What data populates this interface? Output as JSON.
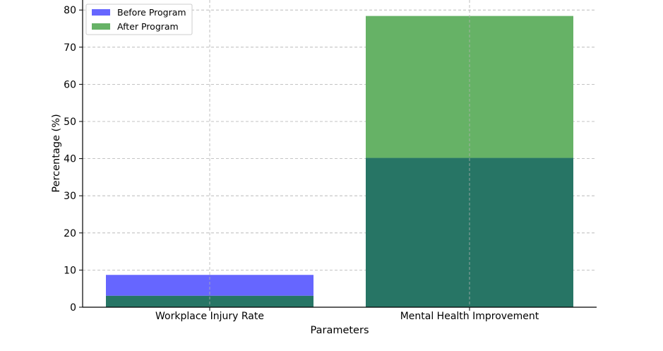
{
  "chart_data": {
    "type": "bar",
    "title": "",
    "xlabel": "Parameters",
    "ylabel": "Percentage (%)",
    "categories": [
      "Workplace Injury Rate",
      "Mental Health Improvement"
    ],
    "series": [
      {
        "name": "Before Program",
        "values": [
          8.7,
          40.2
        ],
        "color": "#6666ff"
      },
      {
        "name": "After Program",
        "values": [
          3.1,
          78.4
        ],
        "color": "#66b266"
      }
    ],
    "overlap_color": "#277565",
    "ylim": [
      0,
      82
    ],
    "yticks": [
      0,
      10,
      20,
      30,
      40,
      50,
      60,
      70,
      80
    ],
    "grid": true,
    "legend": "top-left"
  }
}
